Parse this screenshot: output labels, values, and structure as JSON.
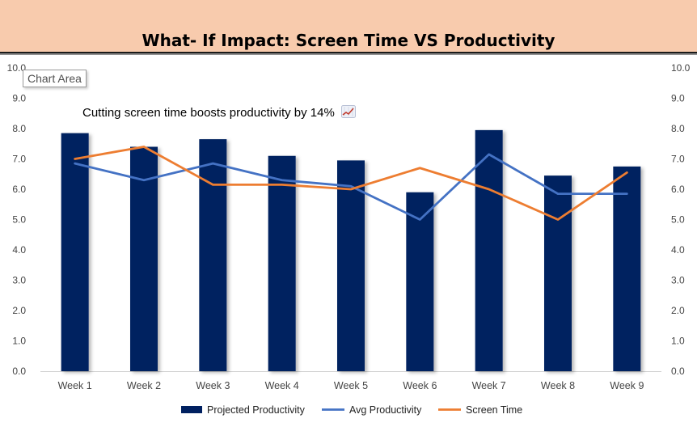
{
  "chart_data": {
    "type": "bar",
    "title": "What- If Impact: Screen Time VS Productivity",
    "annotation": "Cutting screen time boosts productivity by 14%",
    "annotation_icon": "chart-increasing-icon",
    "tooltip": "Chart Area",
    "categories": [
      "Week 1",
      "Week 2",
      "Week 3",
      "Week 4",
      "Week 5",
      "Week 6",
      "Week 7",
      "Week 8",
      "Week 9"
    ],
    "series": [
      {
        "name": "Projected Productivity",
        "type": "bar",
        "color": "#002060",
        "values": [
          7.85,
          7.4,
          7.65,
          7.1,
          6.95,
          5.9,
          7.95,
          6.45,
          6.75
        ]
      },
      {
        "name": "Avg Productivity",
        "type": "line",
        "color": "#4472c4",
        "values": [
          6.85,
          6.3,
          6.85,
          6.3,
          6.1,
          5.0,
          7.15,
          5.85,
          5.85
        ]
      },
      {
        "name": "Screen Time",
        "type": "line",
        "color": "#ed7d31",
        "values": [
          7.0,
          7.4,
          6.15,
          6.15,
          6.0,
          6.7,
          6.0,
          5.0,
          6.55
        ]
      }
    ],
    "ylim": [
      0,
      10
    ],
    "y_ticks": [
      "0.0",
      "1.0",
      "2.0",
      "3.0",
      "4.0",
      "5.0",
      "6.0",
      "7.0",
      "8.0",
      "9.0",
      "10.0"
    ],
    "secondary_y_ticks": [
      "0.0",
      "1.0",
      "2.0",
      "3.0",
      "4.0",
      "5.0",
      "6.0",
      "7.0",
      "8.0",
      "9.0",
      "10.0"
    ],
    "grid": false,
    "legend_position": "bottom"
  }
}
